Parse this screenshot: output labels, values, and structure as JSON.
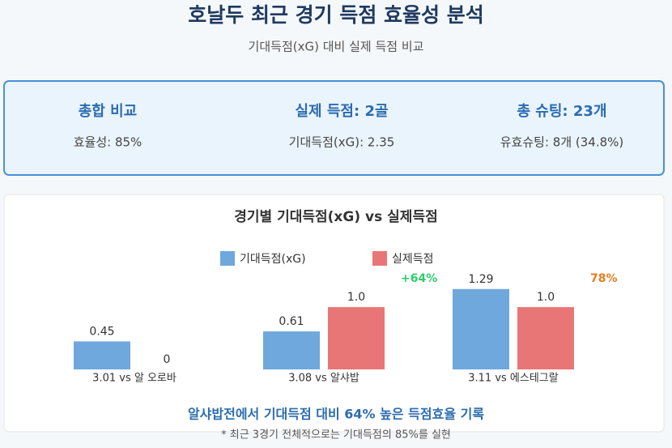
{
  "header": {
    "title": "호날두 최근 경기 득점 효율성 분석",
    "subtitle": "기대득점(xG) 대비 실제 득점 비교"
  },
  "summary": [
    {
      "heading": "총합 비교",
      "detail": "효율성: 85%"
    },
    {
      "heading": "실제 득점: 2골",
      "detail": "기대득점(xG): 2.35"
    },
    {
      "heading": "총 슈팅: 23개",
      "detail": "유효슈팅: 8개 (34.8%)"
    }
  ],
  "chart_data": {
    "type": "bar",
    "title": "경기별 기대득점(xG) vs 실제득점",
    "categories": [
      "3.01 vs 알 오로바",
      "3.08 vs 알샤밥",
      "3.11 vs 에스테그랄"
    ],
    "series": [
      {
        "name": "기대득점(xG)",
        "color": "#6fa8dc",
        "values": [
          0.45,
          0.61,
          1.29
        ]
      },
      {
        "name": "실제득점",
        "color": "#e97676",
        "values": [
          0,
          1,
          1
        ],
        "value_labels": [
          "0",
          "1.0",
          "1.0"
        ]
      }
    ],
    "ylim": [
      0,
      1.3
    ],
    "annotations": [
      {
        "text": "+64%",
        "color": "#2ecc71"
      },
      {
        "text": "78%",
        "color": "#e67e22"
      }
    ]
  },
  "footer": {
    "highlight": "알샤밥전에서 기대득점 대비 64% 높은 득점효율 기록",
    "note": "* 최근 3경기 전체적으로는 기대득점의 85%를 실현"
  }
}
